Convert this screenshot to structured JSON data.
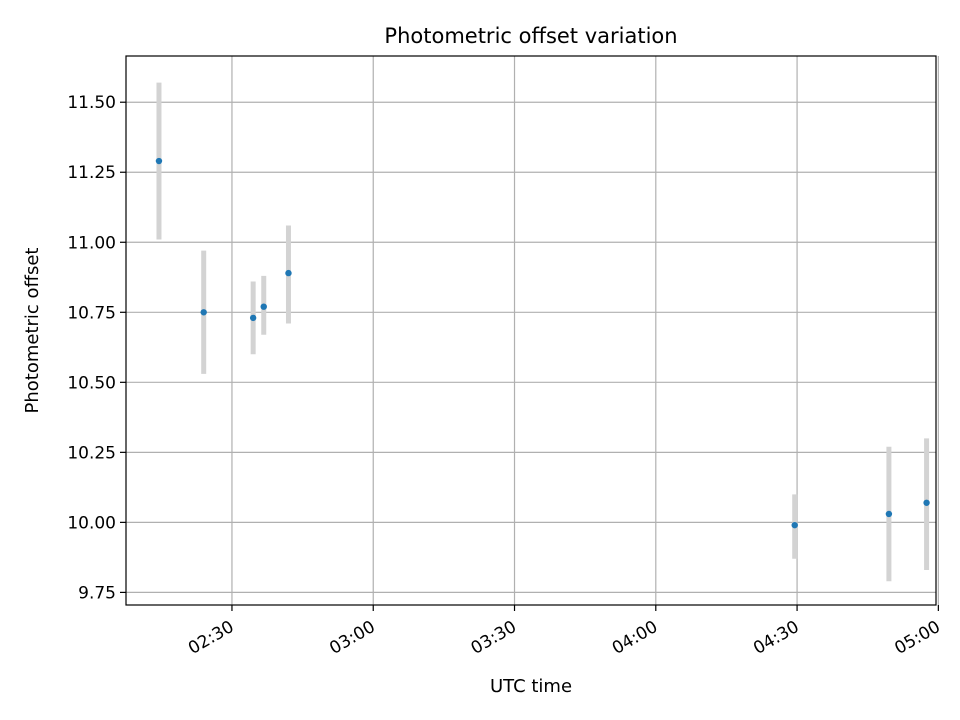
{
  "chart_data": {
    "type": "scatter",
    "title": "Photometric offset variation",
    "xlabel": "UTC time",
    "ylabel": "Photometric offset",
    "x_axis_type": "time",
    "xlim": [
      "02:07:30",
      "04:59:30"
    ],
    "ylim": [
      9.705,
      11.665
    ],
    "x_ticks": [
      "02:30",
      "03:00",
      "03:30",
      "04:00",
      "04:30",
      "05:00"
    ],
    "y_ticks": [
      9.75,
      10.0,
      10.25,
      10.5,
      10.75,
      11.0,
      11.25,
      11.5
    ],
    "y_tick_labels": [
      "9.75",
      "10.00",
      "10.25",
      "10.50",
      "10.75",
      "11.00",
      "11.25",
      "11.50"
    ],
    "grid": true,
    "series": [
      {
        "marker_color": "#1f77b4",
        "errorbar_color": "#d3d3d3",
        "points": [
          {
            "x": "02:14:30",
            "y": 11.29,
            "yerr_low": 11.01,
            "yerr_high": 11.57
          },
          {
            "x": "02:24:00",
            "y": 10.75,
            "yerr_low": 10.53,
            "yerr_high": 10.97
          },
          {
            "x": "02:34:30",
            "y": 10.73,
            "yerr_low": 10.6,
            "yerr_high": 10.86
          },
          {
            "x": "02:36:45",
            "y": 10.77,
            "yerr_low": 10.67,
            "yerr_high": 10.88
          },
          {
            "x": "02:42:00",
            "y": 10.89,
            "yerr_low": 10.71,
            "yerr_high": 11.06
          },
          {
            "x": "04:29:30",
            "y": 9.99,
            "yerr_low": 9.87,
            "yerr_high": 10.1
          },
          {
            "x": "04:49:30",
            "y": 10.03,
            "yerr_low": 9.79,
            "yerr_high": 10.27
          },
          {
            "x": "04:57:30",
            "y": 10.07,
            "yerr_low": 9.83,
            "yerr_high": 10.3
          }
        ]
      }
    ]
  }
}
